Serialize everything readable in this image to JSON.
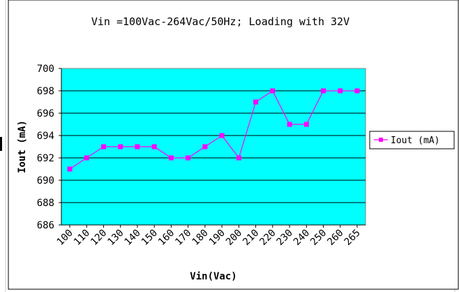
{
  "chart_data": {
    "type": "line",
    "title": "Vin =100Vac-264Vac/50Hz; Loading with 32V",
    "xlabel": "Vin(Vac)",
    "ylabel": "Iout (mA)",
    "categories": [
      "100",
      "110",
      "120",
      "130",
      "140",
      "150",
      "160",
      "170",
      "180",
      "190",
      "200",
      "210",
      "220",
      "230",
      "240",
      "250",
      "260",
      "265"
    ],
    "yticks": [
      "686",
      "688",
      "690",
      "692",
      "694",
      "696",
      "698",
      "700"
    ],
    "ylim": [
      686,
      700
    ],
    "grid": true,
    "legend_position": "right",
    "series": [
      {
        "name": "Iout (mA)",
        "values": [
          691,
          692,
          693,
          693,
          693,
          693,
          692,
          692,
          693,
          694,
          692,
          697,
          698,
          695,
          695,
          698,
          698,
          698
        ]
      }
    ],
    "colors": {
      "plot_background": "#00ffff",
      "series": "#ff00ff",
      "gridline": "#000000"
    }
  }
}
